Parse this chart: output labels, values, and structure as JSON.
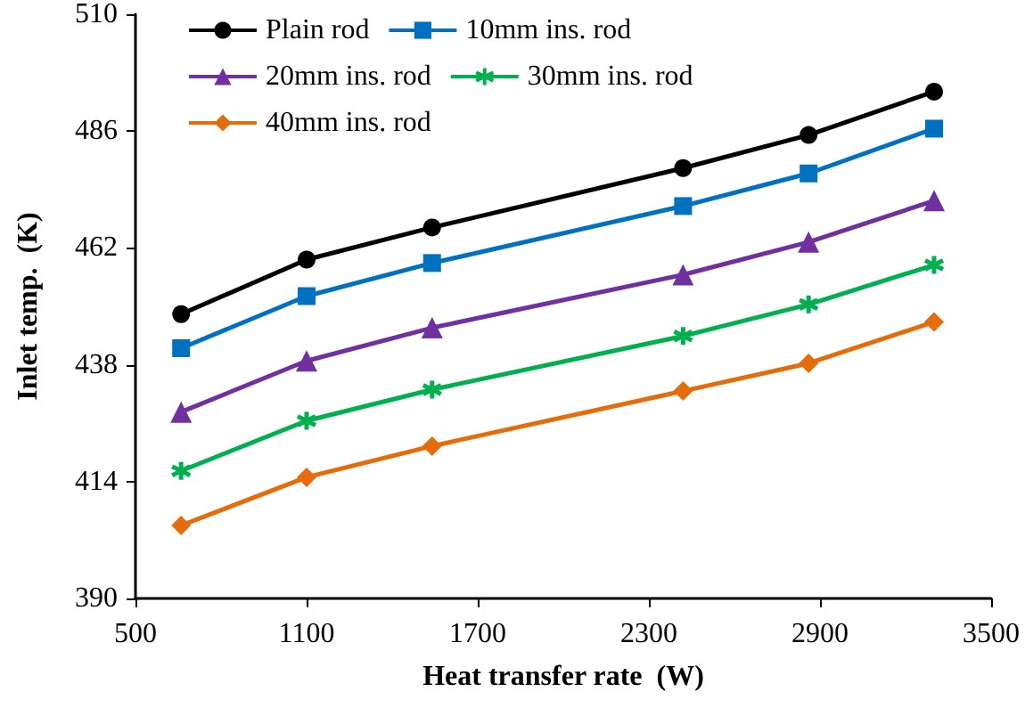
{
  "chart_data": {
    "type": "line",
    "xlabel": "Heat transfer rate  (W)",
    "ylabel": "Inlet temp.  (K)",
    "x": [
      660,
      1100,
      1540,
      2420,
      2860,
      3300
    ],
    "series": [
      {
        "name": "Plain rod",
        "color": "#000000",
        "marker": "circle",
        "values": [
          448.4,
          459.6,
          466.2,
          478.4,
          485.2,
          494.1
        ]
      },
      {
        "name": "10mm ins. rod",
        "color": "#0070c0",
        "marker": "square",
        "values": [
          441.4,
          452.1,
          458.9,
          470.6,
          477.3,
          486.5
        ]
      },
      {
        "name": "20mm ins. rod",
        "color": "#7030a0",
        "marker": "triangle",
        "values": [
          428.3,
          438.8,
          445.6,
          456.5,
          463.2,
          471.7
        ]
      },
      {
        "name": "30mm ins. rod",
        "color": "#00b050",
        "marker": "cross",
        "values": [
          416.2,
          426.5,
          432.9,
          443.9,
          450.4,
          458.5
        ]
      },
      {
        "name": "40mm ins. rod",
        "color": "#e46c0a",
        "marker": "diamond",
        "values": [
          405,
          414.9,
          421.3,
          432.6,
          438.3,
          446.8
        ]
      }
    ],
    "xlim": [
      500,
      3500
    ],
    "xticks": [
      500,
      1100,
      1700,
      2300,
      2900,
      3500
    ],
    "ylim": [
      390,
      510
    ],
    "yticks": [
      390,
      414,
      438,
      462,
      486,
      510
    ],
    "grid": false,
    "legend": "top",
    "line_style": "solid"
  }
}
